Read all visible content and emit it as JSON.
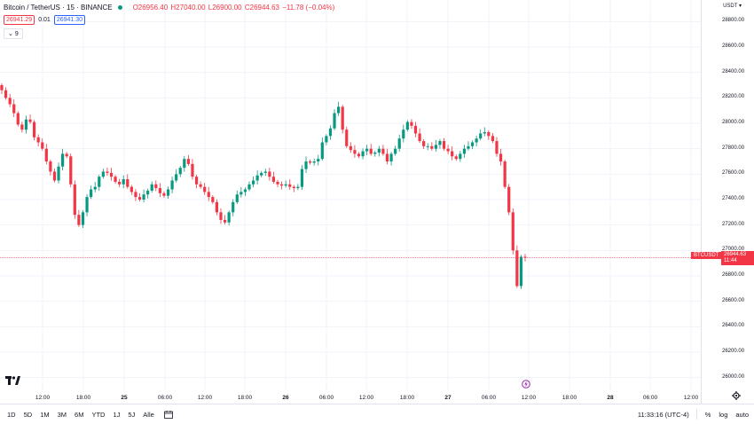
{
  "legend": {
    "title": "Bitcoin / TetherUS · 15 · BINANCE",
    "open": "O26956.40",
    "high": "H27040.00",
    "low": "L26900.00",
    "close": "C26944.63",
    "change": "−11.78 (−0.04%)"
  },
  "quote": {
    "sell": "26941.29",
    "spread": "0.01",
    "buy": "26941.30"
  },
  "indicators": {
    "count": "9"
  },
  "axis": {
    "currency": "USDT",
    "price_labels": [
      "28800.00",
      "28600.00",
      "28400.00",
      "28200.00",
      "28000.00",
      "27800.00",
      "27600.00",
      "27400.00",
      "27200.00",
      "27000.00",
      "26800.00",
      "26600.00",
      "26400.00",
      "26200.00",
      "26000.00"
    ],
    "time_labels": [
      "12:00",
      "18:00",
      "25",
      "06:00",
      "12:00",
      "18:00",
      "26",
      "06:00",
      "12:00",
      "18:00",
      "27",
      "06:00",
      "12:00",
      "18:00",
      "28",
      "06:00",
      "12:00"
    ]
  },
  "last_price": {
    "symbol": "BTCUSDT",
    "price": "26944.63",
    "countdown": "11:44"
  },
  "bottom": {
    "timeframes": [
      "1D",
      "5D",
      "1M",
      "3M",
      "6M",
      "YTD",
      "1J",
      "5J",
      "Alle"
    ],
    "clock": "11:33:16 (UTC-4)",
    "percent": "%",
    "log": "log",
    "auto": "auto"
  },
  "colors": {
    "up": "#089981",
    "down": "#f23645",
    "grid": "#f0f3fa"
  },
  "chart_data": {
    "type": "candlestick",
    "ylim": [
      25900,
      28900
    ],
    "closes": [
      28260,
      28200,
      28150,
      28080,
      27990,
      27950,
      28030,
      28010,
      27890,
      27850,
      27800,
      27700,
      27620,
      27550,
      27660,
      27760,
      27740,
      27520,
      27280,
      27200,
      27300,
      27420,
      27480,
      27500,
      27580,
      27620,
      27610,
      27580,
      27540,
      27520,
      27560,
      27500,
      27460,
      27420,
      27400,
      27440,
      27470,
      27520,
      27490,
      27450,
      27430,
      27480,
      27550,
      27600,
      27650,
      27720,
      27680,
      27580,
      27520,
      27500,
      27460,
      27420,
      27380,
      27300,
      27240,
      27220,
      27300,
      27380,
      27440,
      27460,
      27480,
      27520,
      27550,
      27590,
      27610,
      27620,
      27580,
      27540,
      27520,
      27510,
      27520,
      27500,
      27490,
      27500,
      27640,
      27700,
      27690,
      27700,
      27720,
      27850,
      27900,
      27960,
      28080,
      28130,
      27950,
      27820,
      27790,
      27760,
      27740,
      27780,
      27800,
      27760,
      27770,
      27800,
      27760,
      27700,
      27760,
      27800,
      27880,
      27950,
      28010,
      27980,
      27920,
      27860,
      27820,
      27820,
      27800,
      27830,
      27860,
      27800,
      27780,
      27740,
      27720,
      27760,
      27800,
      27820,
      27850,
      27880,
      27920,
      27930,
      27900,
      27860,
      27760,
      27700,
      27500,
      27300,
      27000,
      26720,
      26950,
      26944.63
    ]
  }
}
